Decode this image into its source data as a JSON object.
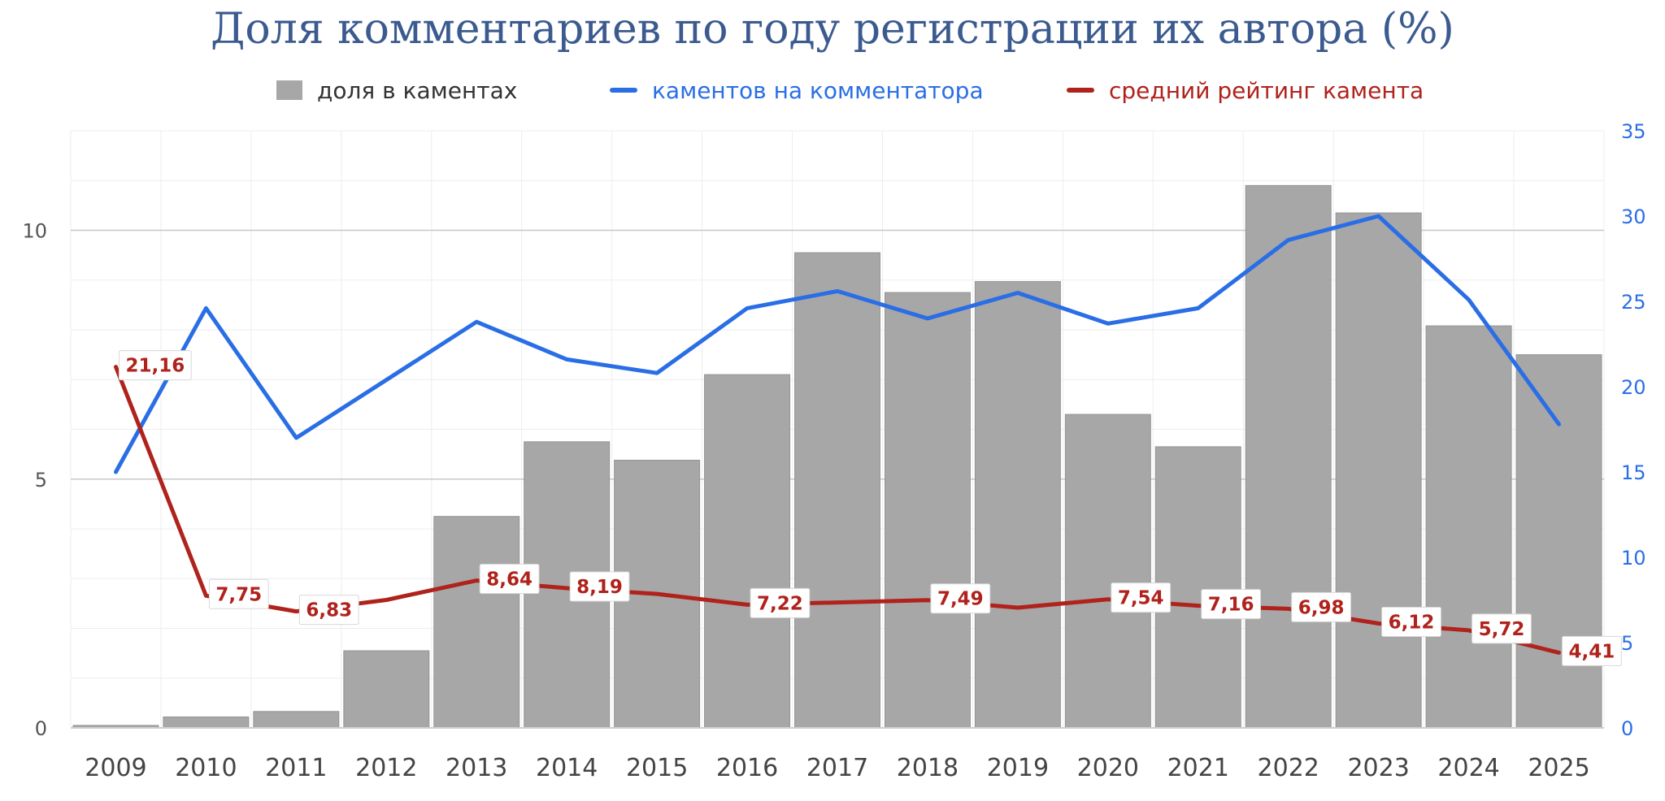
{
  "chart_data": {
    "type": "bar",
    "title": "Доля комментариев по году регистрации их автора (%)",
    "categories": [
      "2009",
      "2010",
      "2011",
      "2012",
      "2013",
      "2014",
      "2015",
      "2016",
      "2017",
      "2018",
      "2019",
      "2020",
      "2021",
      "2022",
      "2023",
      "2024",
      "2025"
    ],
    "y_left": {
      "ylim": [
        0,
        12
      ],
      "ticks": [
        0,
        5,
        10
      ]
    },
    "y_right": {
      "ylim": [
        0,
        35
      ],
      "ticks": [
        0,
        5,
        10,
        15,
        20,
        25,
        30,
        35
      ]
    },
    "grid": true,
    "legend_position": "top",
    "series": [
      {
        "name": "доля в каментах",
        "type": "bar",
        "axis": "left",
        "color": "#a7a7a7",
        "values": [
          0.05,
          0.22,
          0.33,
          1.55,
          4.25,
          5.75,
          5.38,
          7.1,
          9.55,
          8.75,
          8.97,
          6.3,
          5.65,
          10.9,
          10.35,
          8.08,
          7.5
        ]
      },
      {
        "name": "каментов на комментатора",
        "type": "line",
        "axis": "right",
        "color": "#2a6ee6",
        "values": [
          15.0,
          24.6,
          17.0,
          20.4,
          23.8,
          21.6,
          20.8,
          24.6,
          25.6,
          24.0,
          25.5,
          23.7,
          24.6,
          28.6,
          30.0,
          25.1,
          17.8
        ]
      },
      {
        "name": "средний рейтинг камента",
        "type": "line",
        "axis": "right",
        "color": "#b0221c",
        "values": [
          21.16,
          7.75,
          6.83,
          7.5,
          8.64,
          8.19,
          7.85,
          7.22,
          7.35,
          7.49,
          7.05,
          7.54,
          7.16,
          6.98,
          6.12,
          5.72,
          4.41
        ],
        "labels": [
          "21,16",
          "7,75",
          "6,83",
          "",
          "8,64",
          "8,19",
          "",
          "7,22",
          "",
          "7,49",
          "",
          "7,54",
          "7,16",
          "6,98",
          "6,12",
          "5,72",
          "4,41"
        ]
      }
    ]
  }
}
